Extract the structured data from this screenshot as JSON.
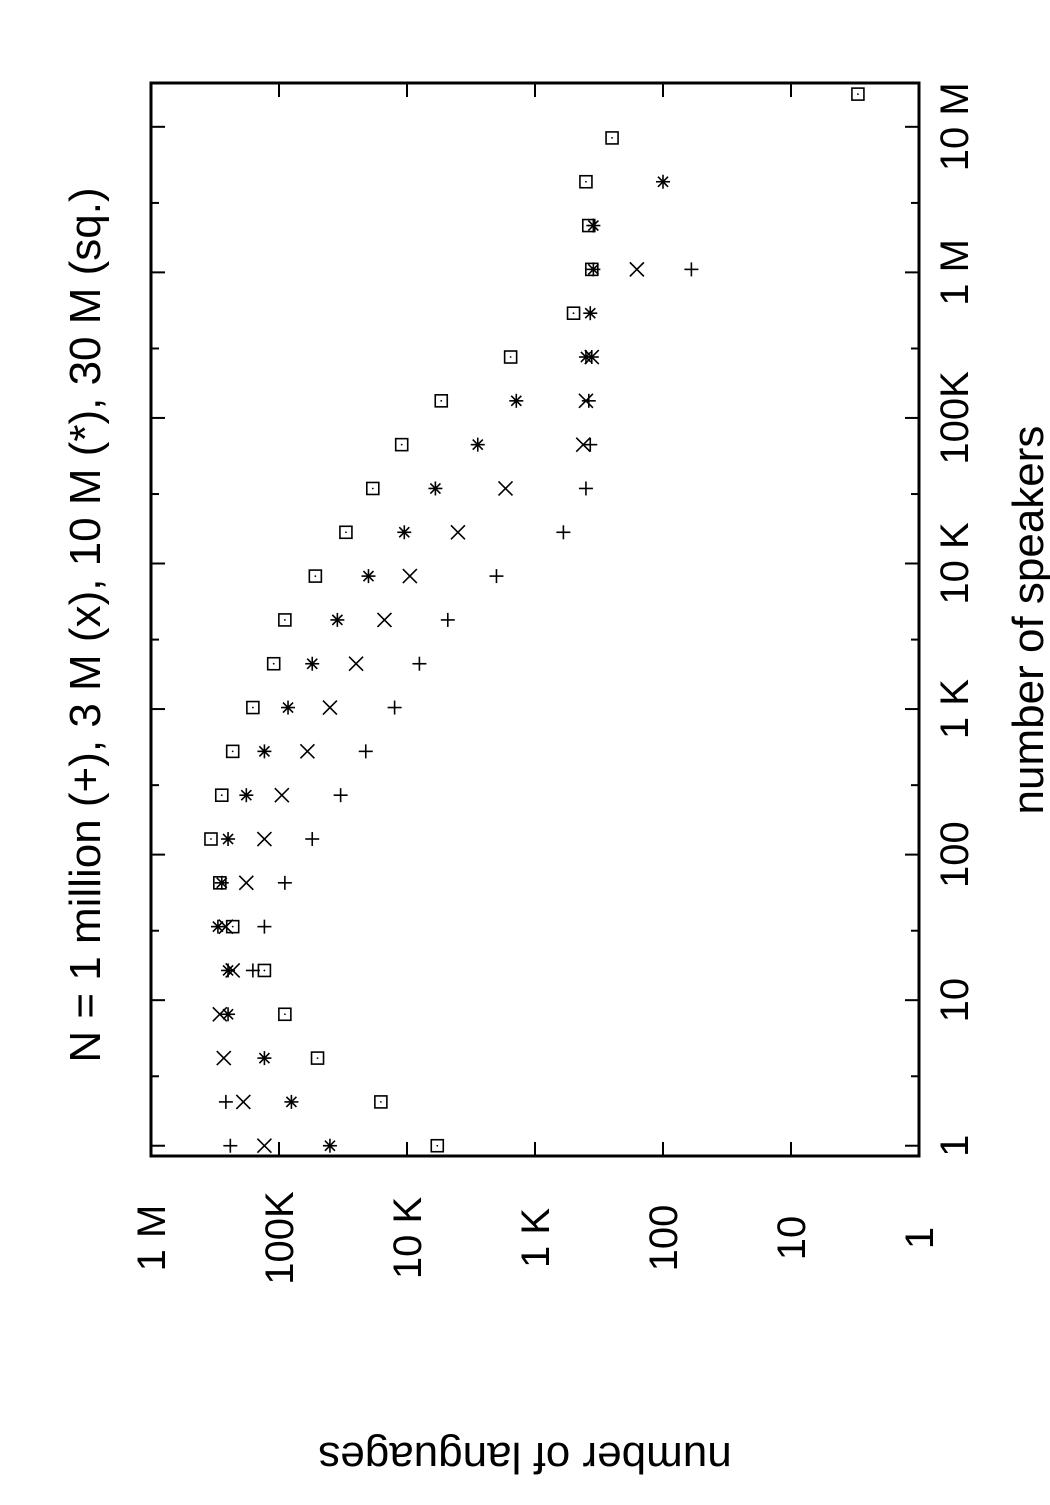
{
  "chart_data": {
    "type": "scatter",
    "title": "N = 1 million (+), 3 M (x), 10 M (*), 30 M (sq.)",
    "xlabel": "number of speakers",
    "ylabel": "number of languages",
    "x_scale": "log",
    "y_scale": "log",
    "xlim": [
      0.85,
      20000000
    ],
    "ylim": [
      1,
      1000000
    ],
    "grid": false,
    "orientation": "rotated-90-clockwise",
    "x_ticks": [
      {
        "value": 1,
        "label": "1"
      },
      {
        "value": 10,
        "label": "10"
      },
      {
        "value": 100,
        "label": "100"
      },
      {
        "value": 1000,
        "label": "1 K"
      },
      {
        "value": 10000,
        "label": "10 K"
      },
      {
        "value": 100000,
        "label": "100K"
      },
      {
        "value": 1000000,
        "label": "1 M"
      },
      {
        "value": 10000000,
        "label": "10 M"
      }
    ],
    "y_ticks": [
      {
        "value": 1,
        "label": "1"
      },
      {
        "value": 10,
        "label": "10"
      },
      {
        "value": 100,
        "label": "100"
      },
      {
        "value": 1000,
        "label": "1 K"
      },
      {
        "value": 10000,
        "label": "10 K"
      },
      {
        "value": 100000,
        "label": "100K"
      },
      {
        "value": 1000000,
        "label": "1 M"
      }
    ],
    "x": [
      1,
      2,
      4,
      8,
      16,
      32,
      64,
      128,
      256,
      512,
      1024,
      2048,
      4096,
      8192,
      16384,
      32768,
      65536,
      131072,
      262144,
      524288,
      1048576,
      2097152,
      4194304,
      8388608,
      16777216
    ],
    "series": [
      {
        "marker": "plus",
        "values": [
          240000,
          260000,
          null,
          null,
          160000,
          130000,
          90000,
          55000,
          33000,
          21000,
          12500,
          8000,
          4800,
          2000,
          600,
          400,
          370,
          380,
          360,
          null,
          60
        ]
      },
      {
        "marker": "cross",
        "values": [
          130000,
          190000,
          270000,
          290000,
          230000,
          260000,
          180000,
          130000,
          95000,
          60000,
          40000,
          25000,
          15000,
          9500,
          4000,
          1700,
          420,
          400,
          360,
          null,
          160
        ]
      },
      {
        "marker": "asterisk",
        "values": [
          40000,
          80000,
          130000,
          250000,
          250000,
          300000,
          280000,
          250000,
          180000,
          130000,
          85000,
          55000,
          35000,
          20000,
          10500,
          6000,
          2800,
          1400,
          400,
          370,
          350,
          350,
          100
        ]
      },
      {
        "marker": "square",
        "values": [
          5800,
          16000,
          50000,
          90000,
          130000,
          230000,
          290000,
          340000,
          280000,
          230000,
          160000,
          110000,
          90000,
          52000,
          30000,
          18500,
          11000,
          5400,
          1550,
          500,
          360,
          380,
          400,
          250,
          3
        ]
      }
    ]
  }
}
